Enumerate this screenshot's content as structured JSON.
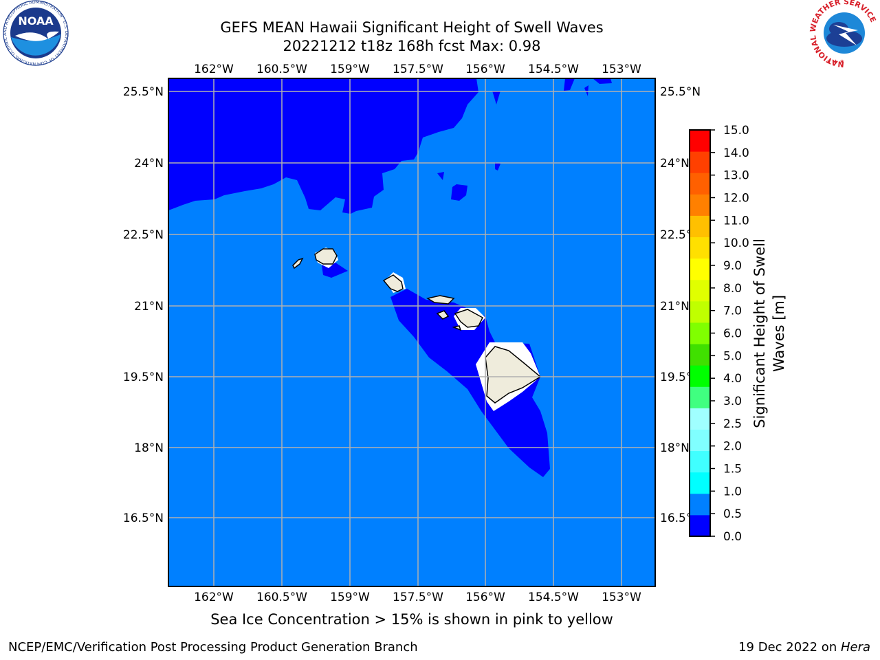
{
  "title_line1": "GEFS MEAN Hawaii Significant Height of Swell Waves",
  "title_line2": "20221212 t18z 168h fcst   Max: 0.98",
  "map": {
    "lon_labels": [
      "162°W",
      "160.5°W",
      "159°W",
      "157.5°W",
      "156°W",
      "154.5°W",
      "153°W"
    ],
    "lat_labels": [
      "25.5°N",
      "24°N",
      "22.5°N",
      "21°N",
      "19.5°N",
      "18°N",
      "16.5°N"
    ],
    "colors": {
      "sea": "#0080ff",
      "deep": "#0000ff",
      "land": "#efecdc"
    },
    "islands": [
      "Niihau",
      "Kauai",
      "Oahu",
      "Molokai",
      "Lanai",
      "Maui",
      "Kahoolawe",
      "Hawaii"
    ]
  },
  "colorbar": {
    "label_line1": "Significant Height of Swell",
    "label_line2": "Waves [m]",
    "levels": [
      "0.0",
      "0.5",
      "1.0",
      "1.5",
      "2.0",
      "2.5",
      "3.0",
      "4.0",
      "5.0",
      "6.0",
      "7.0",
      "8.0",
      "9.0",
      "10.0",
      "11.0",
      "12.0",
      "13.0",
      "14.0",
      "15.0"
    ],
    "colors": [
      "#0000ff",
      "#0080ff",
      "#00ffff",
      "#40ffff",
      "#80ffff",
      "#a0ffff",
      "#40ff80",
      "#00ff00",
      "#40e000",
      "#80ff00",
      "#c0ff00",
      "#e0ff00",
      "#ffff00",
      "#ffe000",
      "#ffc000",
      "#ff8000",
      "#ff6000",
      "#ff4000",
      "#ff0000"
    ]
  },
  "logos": {
    "noaa_text": "NOAA",
    "noaa_ring": "NATIONAL OCEANIC AND ATMOSPHERIC ADMINISTRATION · U.S. DEPARTMENT OF COMMERCE",
    "nws_ring": "NATIONAL WEATHER SERVICE"
  },
  "note": "Sea Ice Concentration > 15% is shown in pink to yellow",
  "footer_left": "NCEP/EMC/Verification Post Processing Product Generation Branch",
  "footer_right_date": "19 Dec 2022 on ",
  "footer_right_machine": "Hera"
}
